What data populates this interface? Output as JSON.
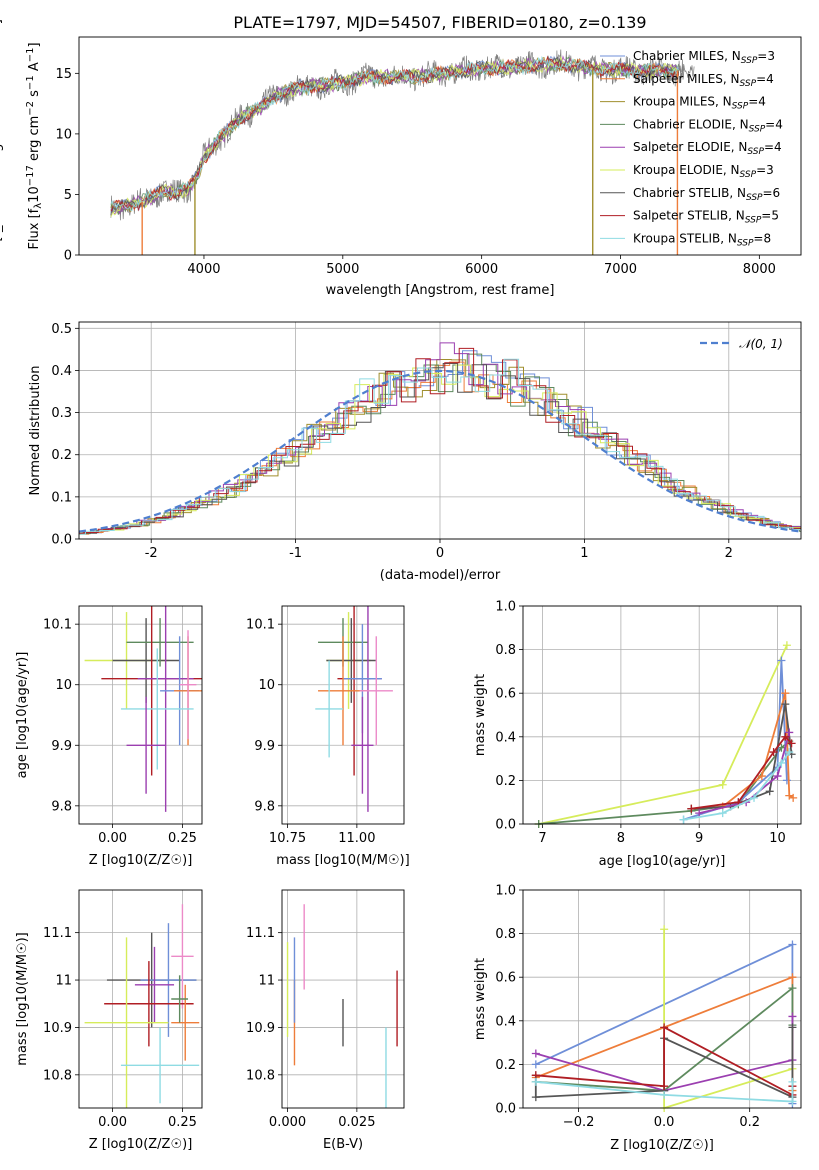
{
  "figure": {
    "title": "PLATE=1797, MJD=54507, FIBERID=0180, z=0.139"
  },
  "colors": {
    "Chabrier MILES": "#6f8fd8",
    "Salpeter MILES": "#ee7d3a",
    "Kroupa MILES": "#a08f2e",
    "Chabrier ELODIE": "#5e8a5e",
    "Salpeter ELODIE": "#9b3fb0",
    "Kroupa ELODIE": "#d6ec5b",
    "Chabrier STELIB": "#555555",
    "Salpeter STELIB": "#b01e24",
    "Kroupa STELIB": "#8fdbe3",
    "pink": "#ec8ac8",
    "spectrum": "#7f7f7f",
    "normal": "#4f7fcf"
  },
  "chart_data": [
    {
      "id": "spectrum",
      "type": "line",
      "title": "PLATE=1797, MJD=54507, FIBERID=0180, z=0.139",
      "xlabel": "wavelength [Angstrom, rest frame]",
      "ylabel": "Flux [f_λ10^-17 erg cm^-2 s^-1 A^-1]",
      "xlim": [
        3100,
        8300
      ],
      "ylim": [
        0,
        18
      ],
      "xticks": [
        4000,
        5000,
        6000,
        7000,
        8000
      ],
      "yticks": [
        0,
        5,
        10,
        15
      ],
      "grid": false,
      "legend_position": "right",
      "legend": [
        {
          "name": "Chabrier MILES",
          "nssp": "3"
        },
        {
          "name": "Salpeter MILES",
          "nssp": "4"
        },
        {
          "name": "Kroupa MILES",
          "nssp": "4"
        },
        {
          "name": "Chabrier ELODIE",
          "nssp": "4"
        },
        {
          "name": "Salpeter ELODIE",
          "nssp": "4"
        },
        {
          "name": "Kroupa ELODIE",
          "nssp": "3"
        },
        {
          "name": "Chabrier STELIB",
          "nssp": "6"
        },
        {
          "name": "Salpeter STELIB",
          "nssp": "5"
        },
        {
          "name": "Kroupa STELIB",
          "nssp": "8"
        }
      ],
      "continuum": {
        "x": [
          3330,
          3500,
          3600,
          3700,
          3800,
          3900,
          3950,
          4000,
          4100,
          4200,
          4300,
          4400,
          4500,
          4600,
          4700,
          4800,
          4900,
          5000,
          5200,
          5400,
          5600,
          5800,
          6000,
          6200,
          6400,
          6600,
          6800,
          7000,
          7200,
          7400
        ],
        "y": [
          3.8,
          4.2,
          4.6,
          5.3,
          5.1,
          5.6,
          6.5,
          8.0,
          9.5,
          10.6,
          11.6,
          12.1,
          13.0,
          13.6,
          13.8,
          14.0,
          14.0,
          14.3,
          14.7,
          14.7,
          14.8,
          15.1,
          15.4,
          15.5,
          15.7,
          15.8,
          15.4,
          15.3,
          15.2,
          15.2
        ]
      }
    },
    {
      "id": "residuals",
      "type": "histogram",
      "xlabel": "(data-model)/error",
      "ylabel": "Normed distribution",
      "xlim": [
        -2.5,
        2.5
      ],
      "ylim": [
        0,
        0.515
      ],
      "xticks": [
        -2,
        -1,
        0,
        1,
        2
      ],
      "yticks": [
        0.0,
        0.1,
        0.2,
        0.3,
        0.4,
        0.5
      ],
      "grid": true,
      "legend_position": "top-right",
      "legend": [
        "𝒩(0, 1)"
      ],
      "bin_width": 0.1,
      "series": [
        {
          "name": "Chabrier MILES",
          "amp": 1.02
        },
        {
          "name": "Salpeter MILES",
          "amp": 0.99
        },
        {
          "name": "Kroupa MILES",
          "amp": 1.0
        },
        {
          "name": "Chabrier ELODIE",
          "amp": 0.98
        },
        {
          "name": "Salpeter ELODIE",
          "amp": 1.03
        },
        {
          "name": "Kroupa ELODIE",
          "amp": 1.01
        },
        {
          "name": "Chabrier STELIB",
          "amp": 0.97
        },
        {
          "name": "Salpeter STELIB",
          "amp": 1.0
        },
        {
          "name": "Kroupa STELIB",
          "amp": 1.02
        }
      ]
    },
    {
      "id": "age-vs-Z",
      "type": "errorbar",
      "xlabel": "Z [log10(Z/Z☉)]",
      "ylabel": "age  [log10(age/yr)]",
      "xlim": [
        -0.12,
        0.32
      ],
      "ylim": [
        9.77,
        10.13
      ],
      "xticks": [
        0.0,
        0.25
      ],
      "xticklabels": [
        "0.00",
        "0.25"
      ],
      "yticks": [
        9.8,
        9.9,
        10.0,
        10.1
      ],
      "grid": true,
      "points": [
        {
          "s": "Kroupa ELODIE",
          "x": 0.05,
          "xe": 0.15,
          "y": 10.04,
          "ye": 0.08
        },
        {
          "s": "Chabrier STELIB",
          "x": 0.12,
          "xe": 0.12,
          "y": 10.04,
          "ye": 0.07
        },
        {
          "s": "Chabrier ELODIE",
          "x": 0.17,
          "xe": 0.12,
          "y": 10.07,
          "ye": 0.04
        },
        {
          "s": "Salpeter STELIB",
          "x": 0.14,
          "xe": 0.18,
          "y": 10.01,
          "ye": 0.16
        },
        {
          "s": "Salpeter ELODIE",
          "x": 0.19,
          "xe": 0.1,
          "y": 10.01,
          "ye": 0.22
        },
        {
          "s": "Chabrier MILES",
          "x": 0.24,
          "xe": 0.07,
          "y": 9.99,
          "ye": 0.09
        },
        {
          "s": "Salpeter MILES",
          "x": 0.27,
          "xe": 0.05,
          "y": 9.99,
          "ye": 0.09
        },
        {
          "s": "pink",
          "x": 0.27,
          "xe": 0.03,
          "y": 10.0,
          "ye": 0.09
        },
        {
          "s": "Kroupa STELIB",
          "x": 0.16,
          "xe": 0.13,
          "y": 9.96,
          "ye": 0.1
        },
        {
          "s": "Salpeter ELODIE",
          "x": 0.12,
          "xe": 0.07,
          "y": 9.9,
          "ye": 0.08
        }
      ]
    },
    {
      "id": "age-vs-mass",
      "type": "errorbar",
      "xlabel": "mass [log10(M/M☉)]",
      "ylabel": "",
      "xlim": [
        10.73,
        11.17
      ],
      "ylim": [
        9.77,
        10.13
      ],
      "xticks": [
        10.75,
        11.0
      ],
      "xticklabels": [
        "10.75",
        "11.00"
      ],
      "yticks": [
        9.8,
        9.9,
        10.0,
        10.1
      ],
      "grid": true,
      "points": [
        {
          "s": "Kroupa ELODIE",
          "x": 10.97,
          "xe": 0.08,
          "y": 10.04,
          "ye": 0.08
        },
        {
          "s": "Chabrier STELIB",
          "x": 10.98,
          "xe": 0.09,
          "y": 10.04,
          "ye": 0.07
        },
        {
          "s": "Chabrier ELODIE",
          "x": 10.95,
          "xe": 0.09,
          "y": 10.07,
          "ye": 0.04
        },
        {
          "s": "Salpeter STELIB",
          "x": 10.99,
          "xe": 0.06,
          "y": 10.01,
          "ye": 0.16
        },
        {
          "s": "Salpeter ELODIE",
          "x": 11.04,
          "xe": 0.05,
          "y": 10.01,
          "ye": 0.22
        },
        {
          "s": "Chabrier MILES",
          "x": 11.02,
          "xe": 0.07,
          "y": 10.01,
          "ye": 0.09
        },
        {
          "s": "Salpeter MILES",
          "x": 10.95,
          "xe": 0.09,
          "y": 9.99,
          "ye": 0.09
        },
        {
          "s": "pink",
          "x": 11.07,
          "xe": 0.06,
          "y": 9.99,
          "ye": 0.09
        },
        {
          "s": "Kroupa STELIB",
          "x": 10.9,
          "xe": 0.05,
          "y": 9.96,
          "ye": 0.08
        },
        {
          "s": "Salpeter ELODIE",
          "x": 11.02,
          "xe": 0.04,
          "y": 9.9,
          "ye": 0.08
        }
      ]
    },
    {
      "id": "weight-vs-age",
      "type": "line",
      "xlabel": "age  [log10(age/yr)]",
      "ylabel": "mass weight",
      "xlim": [
        6.75,
        10.3
      ],
      "ylim": [
        0,
        1.0
      ],
      "xticks": [
        7,
        8,
        9,
        10
      ],
      "yticks": [
        0.0,
        0.2,
        0.4,
        0.6,
        0.8,
        1.0
      ],
      "grid": true,
      "series": [
        {
          "name": "Kroupa ELODIE",
          "x": [
            6.95,
            9.3,
            10.12
          ],
          "y": [
            0.0,
            0.18,
            0.82
          ]
        },
        {
          "name": "Chabrier ELODIE",
          "x": [
            6.95,
            8.9,
            9.5,
            10.05,
            10.15
          ],
          "y": [
            0.0,
            0.06,
            0.09,
            0.35,
            0.38
          ]
        },
        {
          "name": "Chabrier MILES",
          "x": [
            8.8,
            9.5,
            10.0,
            10.05,
            10.12
          ],
          "y": [
            0.02,
            0.1,
            0.26,
            0.75,
            0.2
          ]
        },
        {
          "name": "Salpeter MILES",
          "x": [
            8.9,
            9.3,
            9.8,
            10.1,
            10.15,
            10.2
          ],
          "y": [
            0.07,
            0.08,
            0.22,
            0.6,
            0.13,
            0.12
          ]
        },
        {
          "name": "Chabrier STELIB",
          "x": [
            8.9,
            9.4,
            9.9,
            10.1,
            10.18
          ],
          "y": [
            0.07,
            0.08,
            0.15,
            0.55,
            0.32
          ]
        },
        {
          "name": "Salpeter ELODIE",
          "x": [
            9.0,
            9.6,
            10.0,
            10.15
          ],
          "y": [
            0.05,
            0.1,
            0.22,
            0.42
          ]
        },
        {
          "name": "Salpeter STELIB",
          "x": [
            8.9,
            9.5,
            9.95,
            10.1,
            10.18
          ],
          "y": [
            0.07,
            0.1,
            0.33,
            0.4,
            0.37
          ]
        },
        {
          "name": "Kroupa STELIB",
          "x": [
            8.8,
            9.3,
            9.7,
            10.05,
            10.15
          ],
          "y": [
            0.02,
            0.05,
            0.12,
            0.28,
            0.33
          ]
        }
      ]
    },
    {
      "id": "mass-vs-Z",
      "type": "errorbar",
      "xlabel": "Z [log10(Z/Z☉)]",
      "ylabel": "mass [log10(M/M☉)]",
      "xlim": [
        -0.12,
        0.32
      ],
      "ylim": [
        10.73,
        11.19
      ],
      "xticks": [
        0.0,
        0.25
      ],
      "xticklabels": [
        "0.00",
        "0.25"
      ],
      "yticks": [
        10.8,
        10.9,
        11.0,
        11.1
      ],
      "grid": true,
      "points": [
        {
          "s": "Chabrier STELIB",
          "x": 0.14,
          "xe": 0.16,
          "y": 11.0,
          "ye": 0.1
        },
        {
          "s": "Chabrier MILES",
          "x": 0.2,
          "xe": 0.1,
          "y": 11.0,
          "ye": 0.12
        },
        {
          "s": "pink",
          "x": 0.25,
          "xe": 0.04,
          "y": 11.05,
          "ye": 0.11
        },
        {
          "s": "Salpeter ELODIE",
          "x": 0.15,
          "xe": 0.07,
          "y": 10.99,
          "ye": 0.08
        },
        {
          "s": "Salpeter STELIB",
          "x": 0.13,
          "xe": 0.16,
          "y": 10.95,
          "ye": 0.09
        },
        {
          "s": "Kroupa ELODIE",
          "x": 0.05,
          "xe": 0.15,
          "y": 10.91,
          "ye": 0.18
        },
        {
          "s": "Salpeter MILES",
          "x": 0.26,
          "xe": 0.05,
          "y": 10.91,
          "ye": 0.08
        },
        {
          "s": "Kroupa STELIB",
          "x": 0.17,
          "xe": 0.14,
          "y": 10.82,
          "ye": 0.08
        },
        {
          "s": "Chabrier ELODIE",
          "x": 0.24,
          "xe": 0.03,
          "y": 10.96,
          "ye": 0.05
        }
      ]
    },
    {
      "id": "mass-vs-EBV",
      "type": "errorbar",
      "xlabel": "E(B-V)",
      "ylabel": "",
      "xlim": [
        -0.002,
        0.042
      ],
      "ylim": [
        10.73,
        11.19
      ],
      "xticks": [
        0.0,
        0.025
      ],
      "xticklabels": [
        "0.000",
        "0.025"
      ],
      "yticks": [
        10.8,
        10.9,
        11.0,
        11.1
      ],
      "grid": true,
      "points": [
        {
          "s": "Kroupa ELODIE",
          "x": 0.0,
          "xe": 0.0,
          "y": 10.98,
          "ye": 0.1
        },
        {
          "s": "Salpeter MILES",
          "x": 0.0025,
          "xe": 0.0,
          "y": 10.91,
          "ye": 0.09
        },
        {
          "s": "Chabrier MILES",
          "x": 0.0025,
          "xe": 0.0,
          "y": 11.0,
          "ye": 0.09
        },
        {
          "s": "pink",
          "x": 0.006,
          "xe": 0.0,
          "y": 11.07,
          "ye": 0.09
        },
        {
          "s": "Chabrier STELIB",
          "x": 0.02,
          "xe": 0.0,
          "y": 10.91,
          "ye": 0.05
        },
        {
          "s": "Kroupa STELIB",
          "x": 0.0355,
          "xe": 0.0,
          "y": 10.8,
          "ye": 0.1
        },
        {
          "s": "Salpeter STELIB",
          "x": 0.0395,
          "xe": 0.0,
          "y": 10.94,
          "ye": 0.08
        }
      ]
    },
    {
      "id": "weight-vs-Z",
      "type": "line",
      "xlabel": "Z [log10(Z/Z☉)]",
      "ylabel": "mass weight",
      "xlim": [
        -0.33,
        0.32
      ],
      "ylim": [
        0,
        1.0
      ],
      "xticks": [
        -0.2,
        0.0,
        0.2
      ],
      "xticklabels": [
        "−0.2",
        "0.0",
        "0.2"
      ],
      "yticks": [
        0.0,
        0.2,
        0.4,
        0.6,
        0.8,
        1.0
      ],
      "grid": true,
      "series": [
        {
          "name": "Chabrier MILES",
          "x": [
            -0.3,
            0.3,
            0.3
          ],
          "y": [
            0.2,
            0.75,
            0.02
          ]
        },
        {
          "name": "Salpeter MILES",
          "x": [
            -0.3,
            0.3,
            0.3
          ],
          "y": [
            0.14,
            0.6,
            0.08
          ]
        },
        {
          "name": "Kroupa ELODIE",
          "x": [
            0.0,
            0.0,
            0.3
          ],
          "y": [
            0.82,
            0.0,
            0.18
          ]
        },
        {
          "name": "Chabrier ELODIE",
          "x": [
            -0.3,
            0.0,
            0.3,
            0.3
          ],
          "y": [
            0.12,
            0.08,
            0.55,
            0.38
          ]
        },
        {
          "name": "Salpeter ELODIE",
          "x": [
            -0.3,
            0.0,
            0.3,
            0.3
          ],
          "y": [
            0.25,
            0.08,
            0.22,
            0.42
          ]
        },
        {
          "name": "Chabrier STELIB",
          "x": [
            -0.3,
            -0.3,
            0.0,
            0.0,
            0.3,
            0.3
          ],
          "y": [
            0.15,
            0.05,
            0.08,
            0.32,
            0.05,
            0.37
          ]
        },
        {
          "name": "Salpeter STELIB",
          "x": [
            -0.3,
            0.0,
            0.0,
            0.3,
            0.3
          ],
          "y": [
            0.15,
            0.1,
            0.37,
            0.06,
            0.1
          ]
        },
        {
          "name": "Kroupa STELIB",
          "x": [
            -0.3,
            0.0,
            0.3,
            0.3
          ],
          "y": [
            0.12,
            0.06,
            0.03,
            0.12
          ]
        }
      ]
    }
  ]
}
